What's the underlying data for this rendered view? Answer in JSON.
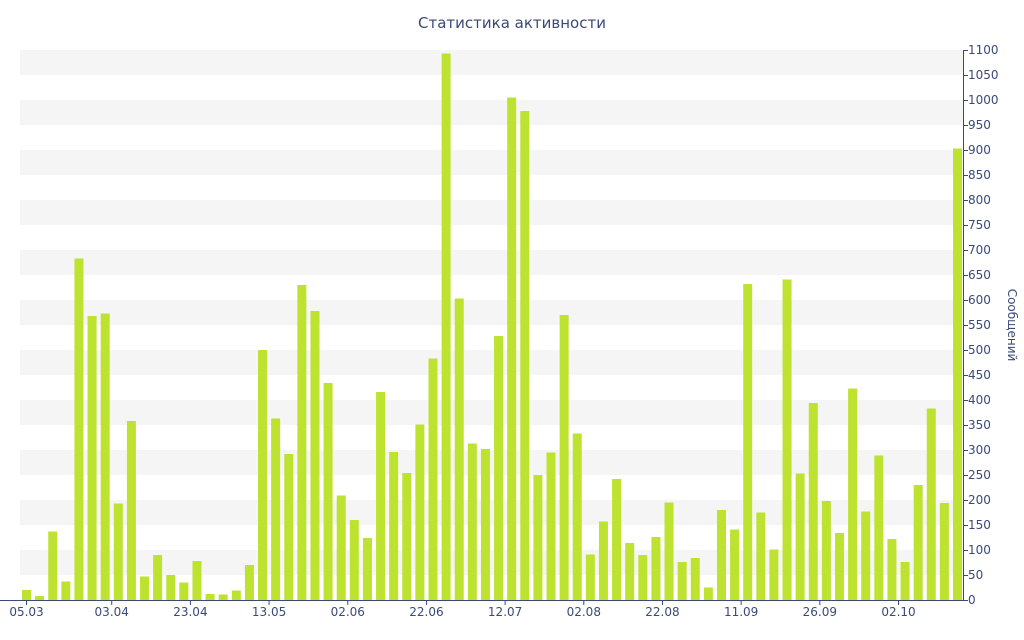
{
  "chart_data": {
    "type": "bar",
    "title": "Статистика активности",
    "ylabel": "Сообщений",
    "y_axis_position": "right",
    "ylim": [
      0,
      1100
    ],
    "yticks": [
      0,
      50,
      100,
      150,
      200,
      250,
      300,
      350,
      400,
      450,
      500,
      550,
      600,
      650,
      700,
      750,
      800,
      850,
      900,
      950,
      1000,
      1050,
      1100
    ],
    "xtick_labels": [
      {
        "index": 0,
        "label": "05.03"
      },
      {
        "index": 6.5,
        "label": "03.04"
      },
      {
        "index": 12.5,
        "label": "23.04"
      },
      {
        "index": 18.5,
        "label": "13.05"
      },
      {
        "index": 24.5,
        "label": "02.06"
      },
      {
        "index": 30.5,
        "label": "22.06"
      },
      {
        "index": 36.5,
        "label": "12.07"
      },
      {
        "index": 42.5,
        "label": "02.08"
      },
      {
        "index": 48.5,
        "label": "22.08"
      },
      {
        "index": 54.5,
        "label": "11.09"
      },
      {
        "index": 60.5,
        "label": "26.09"
      },
      {
        "index": 66.5,
        "label": "02.10"
      }
    ],
    "values": [
      20,
      8,
      137,
      37,
      683,
      568,
      573,
      193,
      358,
      47,
      90,
      50,
      35,
      78,
      12,
      11,
      19,
      70,
      500,
      363,
      292,
      630,
      578,
      434,
      209,
      160,
      124,
      416,
      296,
      254,
      351,
      483,
      1093,
      603,
      313,
      302,
      528,
      1005,
      978,
      250,
      295,
      570,
      333,
      91,
      157,
      242,
      114,
      90,
      126,
      195,
      76,
      84,
      25,
      180,
      141,
      632,
      175,
      101,
      641,
      253,
      394,
      198,
      134,
      423,
      177,
      289,
      122,
      76,
      230,
      383,
      194,
      903
    ],
    "grid": true,
    "bar_color": "#bde230",
    "band_color": "#f5f5f5",
    "text_color": "#3a4a78"
  }
}
